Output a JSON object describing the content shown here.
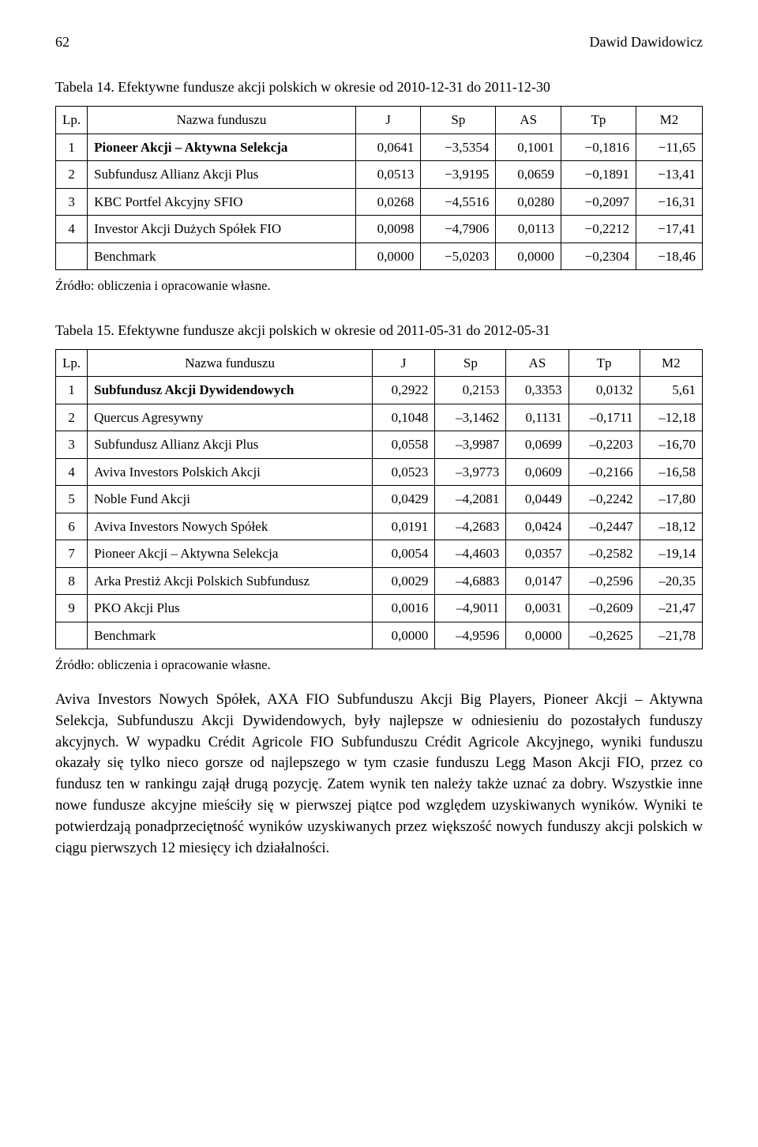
{
  "header": {
    "page_number": "62",
    "author": "Dawid Dawidowicz"
  },
  "table14": {
    "caption": "Tabela 14. Efektywne fundusze akcji polskich w okresie od 2010-12-31 do 2011-12-30",
    "columns": [
      "Lp.",
      "Nazwa funduszu",
      "J",
      "Sp",
      "AS",
      "Tp",
      "M2"
    ],
    "rows": [
      {
        "lp": "1",
        "name": "Pioneer Akcji – Aktywna Selekcja",
        "bold": true,
        "v": [
          "0,0641",
          "−3,5354",
          "0,1001",
          "−0,1816",
          "−11,65"
        ]
      },
      {
        "lp": "2",
        "name": "Subfundusz Allianz Akcji Plus",
        "bold": false,
        "v": [
          "0,0513",
          "−3,9195",
          "0,0659",
          "−0,1891",
          "−13,41"
        ]
      },
      {
        "lp": "3",
        "name": "KBC Portfel Akcyjny SFIO",
        "bold": false,
        "v": [
          "0,0268",
          "−4,5516",
          "0,0280",
          "−0,2097",
          "−16,31"
        ]
      },
      {
        "lp": "4",
        "name": "Investor Akcji Dużych Spółek FIO",
        "bold": false,
        "v": [
          "0,0098",
          "−4,7906",
          "0,0113",
          "−0,2212",
          "−17,41"
        ]
      },
      {
        "lp": "",
        "name": "Benchmark",
        "bold": false,
        "v": [
          "0,0000",
          "−5,0203",
          "0,0000",
          "−0,2304",
          "−18,46"
        ]
      }
    ],
    "source": "Źródło: obliczenia i opracowanie własne."
  },
  "table15": {
    "caption": "Tabela 15. Efektywne fundusze akcji polskich w okresie od 2011-05-31 do 2012-05-31",
    "columns": [
      "Lp.",
      "Nazwa funduszu",
      "J",
      "Sp",
      "AS",
      "Tp",
      "M2"
    ],
    "rows": [
      {
        "lp": "1",
        "name": "Subfundusz Akcji Dywidendowych",
        "bold": true,
        "v": [
          "0,2922",
          "0,2153",
          "0,3353",
          "0,0132",
          "5,61"
        ]
      },
      {
        "lp": "2",
        "name": "Quercus Agresywny",
        "bold": false,
        "v": [
          "0,1048",
          "–3,1462",
          "0,1131",
          "–0,1711",
          "–12,18"
        ]
      },
      {
        "lp": "3",
        "name": "Subfundusz Allianz Akcji Plus",
        "bold": false,
        "v": [
          "0,0558",
          "–3,9987",
          "0,0699",
          "–0,2203",
          "–16,70"
        ]
      },
      {
        "lp": "4",
        "name": "Aviva Investors Polskich Akcji",
        "bold": false,
        "v": [
          "0,0523",
          "–3,9773",
          "0,0609",
          "–0,2166",
          "–16,58"
        ]
      },
      {
        "lp": "5",
        "name": "Noble Fund Akcji",
        "bold": false,
        "v": [
          "0,0429",
          "–4,2081",
          "0,0449",
          "–0,2242",
          "–17,80"
        ]
      },
      {
        "lp": "6",
        "name": "Aviva Investors Nowych Spółek",
        "bold": false,
        "v": [
          "0,0191",
          "–4,2683",
          "0,0424",
          "–0,2447",
          "–18,12"
        ]
      },
      {
        "lp": "7",
        "name": "Pioneer Akcji – Aktywna Selekcja",
        "bold": false,
        "v": [
          "0,0054",
          "–4,4603",
          "0,0357",
          "–0,2582",
          "–19,14"
        ]
      },
      {
        "lp": "8",
        "name": "Arka Prestiż Akcji Polskich Subfundusz",
        "bold": false,
        "v": [
          "0,0029",
          "–4,6883",
          "0,0147",
          "–0,2596",
          "–20,35"
        ]
      },
      {
        "lp": "9",
        "name": "PKO Akcji Plus",
        "bold": false,
        "v": [
          "0,0016",
          "–4,9011",
          "0,0031",
          "–0,2609",
          "–21,47"
        ]
      },
      {
        "lp": "",
        "name": "Benchmark",
        "bold": false,
        "v": [
          "0,0000",
          "–4,9596",
          "0,0000",
          "–0,2625",
          "–21,78"
        ]
      }
    ],
    "source": "Źródło: obliczenia i opracowanie własne."
  },
  "paragraph": "Aviva Investors Nowych Spółek, AXA FIO Subfunduszu Akcji Big Players, Pioneer Akcji – Aktywna Selekcja, Subfunduszu Akcji Dywidendowych, były najlepsze w odniesieniu do pozostałych funduszy akcyjnych. W wypadku Crédit Agricole FIO Subfunduszu Crédit Agricole Akcyjnego, wyniki funduszu okazały się tylko nieco gorsze od najlepszego w tym czasie funduszu Legg Mason Akcji FIO, przez co fundusz ten w rankingu zajął drugą pozycję. Zatem wynik ten należy także uznać za dobry. Wszystkie inne nowe fundusze akcyjne mieściły się w pierwszej piątce pod względem uzyskiwanych wyników. Wyniki te potwierdzają ponadprzeciętność wyników uzyskiwanych przez większość nowych funduszy akcji polskich w ciągu pierwszych 12 miesięcy ich działalności.",
  "styles": {
    "background_color": "#ffffff",
    "text_color": "#000000",
    "border_color": "#000000",
    "font_family": "Times New Roman",
    "body_font_size_pt": 12,
    "table_font_size_pt": 11
  }
}
